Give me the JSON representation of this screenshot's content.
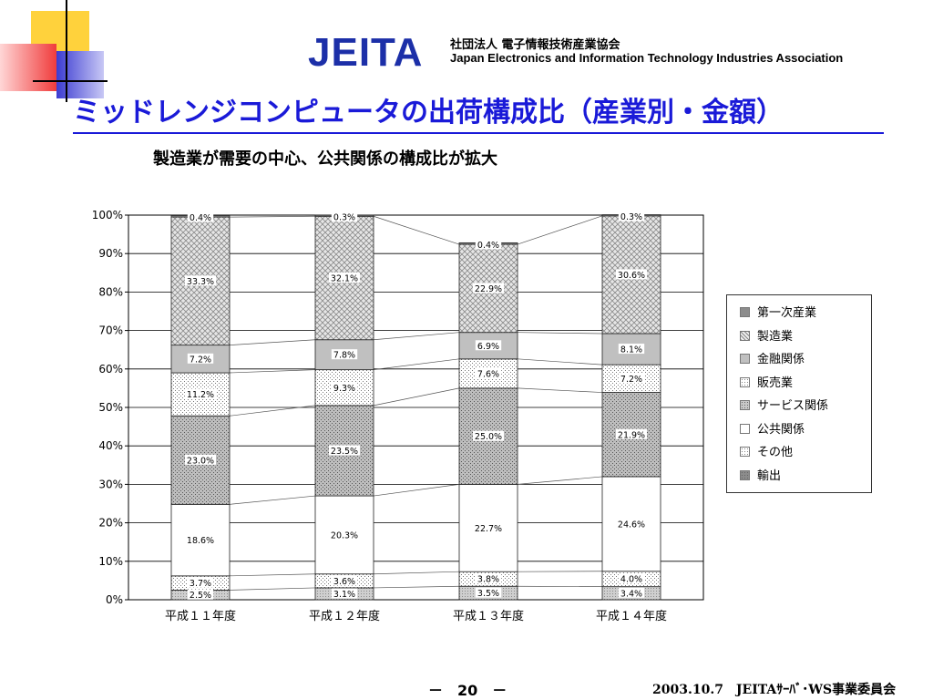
{
  "header": {
    "logo_mark": "JEITA",
    "logo_jp": "社団法人 電子情報技術産業協会",
    "logo_en": "Japan Electronics and Information Technology Industries Association"
  },
  "title": "ミッドレンジコンピュータの出荷構成比（産業別・金額）",
  "subtitle": "製造業が需要の中心、公共関係の構成比が拡大",
  "footer": {
    "page": "－　20　－",
    "note": "2003.10.7　JEITAｻｰﾊﾞ･WS事業委員会"
  },
  "colors": {
    "title": "#1a1ad8",
    "logo": "#1c2fa8",
    "deco_yellow": "#ffd23c",
    "deco_red": "#f03c3c",
    "deco_blue": "#3c3cd2"
  },
  "chart_data": {
    "type": "bar",
    "stacked": true,
    "percent": true,
    "categories": [
      "平成１１年度",
      "平成１２年度",
      "平成１３年度",
      "平成１４年度"
    ],
    "ylim": [
      0,
      100
    ],
    "yticks": [
      "0%",
      "10%",
      "20%",
      "30%",
      "40%",
      "50%",
      "60%",
      "70%",
      "80%",
      "90%",
      "100%"
    ],
    "grid": true,
    "legend_position": "right",
    "series": [
      {
        "name": "輸出",
        "values": [
          2.5,
          3.1,
          3.5,
          3.4
        ],
        "labels": [
          "2.5%",
          "3.1%",
          "3.5%",
          "3.4%"
        ],
        "color": "#8c8c8c",
        "pattern": "dots"
      },
      {
        "name": "その他",
        "values": [
          3.7,
          3.6,
          3.8,
          4.0
        ],
        "labels": [
          "3.7%",
          "3.6%",
          "3.8%",
          "4.0%"
        ],
        "color": "#ffffff",
        "pattern": "dots"
      },
      {
        "name": "公共関係",
        "values": [
          18.6,
          20.3,
          22.7,
          24.6
        ],
        "labels": [
          "18.6%",
          "20.3%",
          "22.7%",
          "24.6%"
        ],
        "color": "#ffffff",
        "pattern": "none"
      },
      {
        "name": "サービス関係",
        "values": [
          23.0,
          23.5,
          25.0,
          21.9
        ],
        "labels": [
          "23.0%",
          "23.5%",
          "25.0%",
          "21.9%"
        ],
        "color": "#c8c8c8",
        "pattern": "dots"
      },
      {
        "name": "販売業",
        "values": [
          11.2,
          9.3,
          7.6,
          7.2
        ],
        "labels": [
          "11.2%",
          "9.3%",
          "7.6%",
          "7.2%"
        ],
        "color": "#ffffff",
        "pattern": "dots"
      },
      {
        "name": "金融関係",
        "values": [
          7.2,
          7.8,
          6.9,
          8.1
        ],
        "labels": [
          "7.2%",
          "7.8%",
          "6.9%",
          "8.1%"
        ],
        "color": "#c0c0c0",
        "pattern": "none"
      },
      {
        "name": "製造業",
        "values": [
          33.3,
          32.1,
          22.9,
          30.6
        ],
        "labels": [
          "33.3%",
          "32.1%",
          "22.9%",
          "30.6%"
        ],
        "color": "#d8d8d8",
        "pattern": "cross"
      },
      {
        "name": "第一次産業",
        "values": [
          0.4,
          0.3,
          0.4,
          0.3
        ],
        "labels": [
          "0.4%",
          "0.3%",
          "0.4%",
          "0.3%"
        ],
        "color": "#8c8c8c",
        "pattern": "none"
      }
    ],
    "legend_order": [
      "第一次産業",
      "製造業",
      "金融関係",
      "販売業",
      "サービス関係",
      "公共関係",
      "その他",
      "輸出"
    ]
  }
}
